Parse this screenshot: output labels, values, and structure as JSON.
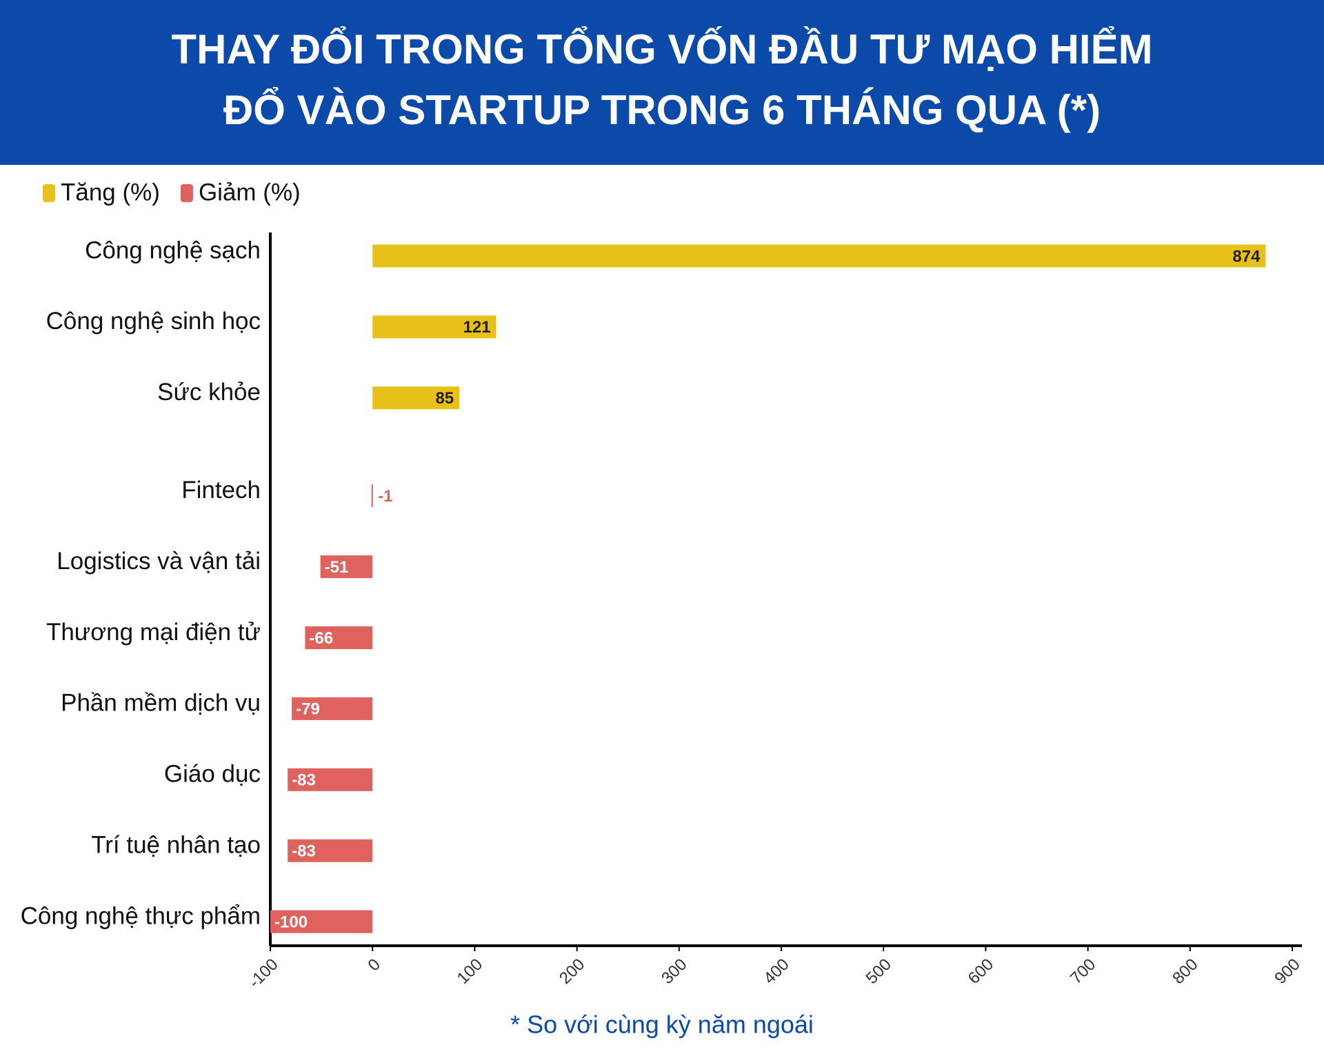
{
  "chart_data": {
    "type": "hbar",
    "title": [
      "THAY ĐỔI TRONG TỔNG VỐN ĐẦU TƯ MẠO HIỂM",
      "ĐỔ VÀO STARTUP TRONG 6 THÁNG QUA (*)"
    ],
    "note": "* So với cùng kỳ năm ngoái",
    "categories": [
      "Công nghệ sạch",
      "Công nghệ sinh học",
      "Sức khỏe",
      "Fintech",
      "Logistics và vận tải",
      "Thương mại điện tử",
      "Phần mềm dịch vụ",
      "Giáo dục",
      "Trí tuệ nhân tạo",
      "Công nghệ thực phẩm"
    ],
    "series": [
      {
        "name": "Tăng (%)",
        "color": "#e8c01a",
        "values": [
          874,
          121,
          85,
          null,
          null,
          null,
          null,
          null,
          null,
          null
        ]
      },
      {
        "name": "Giảm (%)",
        "color": "#e0625e",
        "values": [
          null,
          null,
          null,
          -1,
          -51,
          -66,
          -79,
          -83,
          -83,
          -100
        ]
      }
    ],
    "xlim": [
      -100,
      900
    ],
    "xticks": [
      -100,
      0,
      100,
      200,
      300,
      400,
      500,
      600,
      700,
      800,
      900
    ],
    "legend": "top-left"
  }
}
